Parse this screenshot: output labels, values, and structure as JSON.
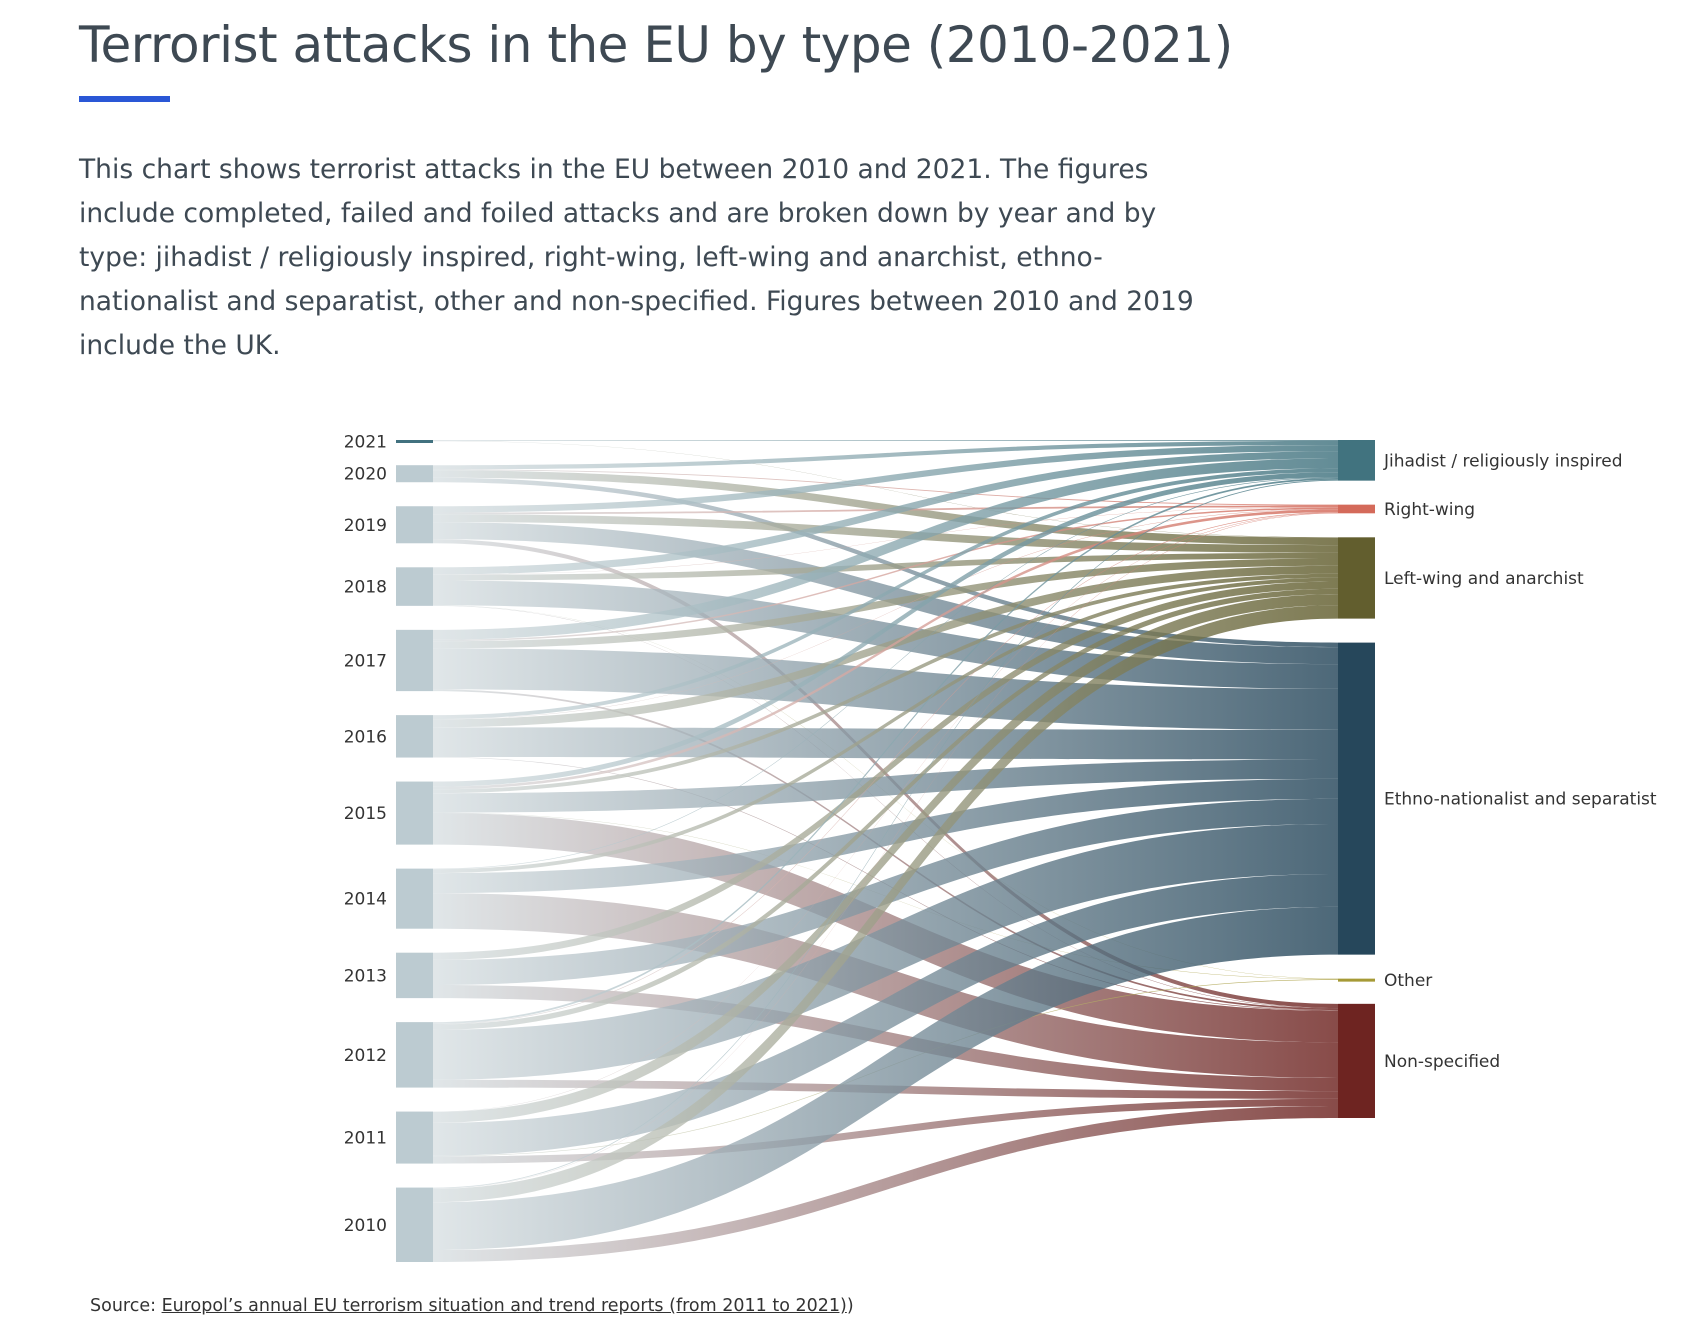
{
  "header": {
    "title": "Terrorist attacks in the EU by type (2010-2021)",
    "description": "This chart shows terrorist attacks in the EU between 2010 and 2021. The figures include completed, failed and foiled attacks and are broken down by year and by type: jihadist / religiously inspired, right-wing, left-wing and anarchist, ethno-nationalist and separatist, other and non-specified. Figures between 2010 and 2019 include the UK."
  },
  "source": {
    "prefix": "Source: ",
    "link_text": "Europol’s annual EU terrorism situation and trend reports (from 2011 to 2021)",
    "suffix": ")"
  },
  "colors": {
    "year_node": "#bccbd1",
    "year_node_2021": "#41717f"
  },
  "chart_data": {
    "type": "sankey",
    "sources": [
      "2021",
      "2020",
      "2019",
      "2018",
      "2017",
      "2016",
      "2015",
      "2014",
      "2013",
      "2012",
      "2011",
      "2010"
    ],
    "targets": [
      {
        "name": "Jihadist / religiously inspired",
        "color": "#41737f"
      },
      {
        "name": "Right-wing",
        "color": "#d46a5a"
      },
      {
        "name": "Left-wing and anarchist",
        "color": "#625e2e"
      },
      {
        "name": "Ethno-nationalist and separatist",
        "color": "#26475b"
      },
      {
        "name": "Other",
        "color": "#a69a36"
      },
      {
        "name": "Non-specified",
        "color": "#6e2421"
      }
    ],
    "flows": [
      [
        3,
        0,
        1,
        0,
        0,
        0
      ],
      [
        14,
        3,
        25,
        15,
        0,
        0
      ],
      [
        21,
        6,
        26,
        57,
        0,
        14
      ],
      [
        24,
        1,
        19,
        83,
        1,
        1
      ],
      [
        33,
        5,
        24,
        137,
        0,
        6
      ],
      [
        13,
        1,
        27,
        99,
        0,
        2
      ],
      [
        17,
        9,
        13,
        65,
        1,
        106
      ],
      [
        2,
        0,
        13,
        67,
        0,
        119
      ],
      [
        0,
        0,
        24,
        84,
        0,
        44
      ],
      [
        6,
        2,
        18,
        167,
        0,
        26
      ],
      [
        0,
        1,
        37,
        110,
        2,
        24
      ],
      [
        3,
        1,
        45,
        160,
        0,
        40
      ]
    ]
  }
}
